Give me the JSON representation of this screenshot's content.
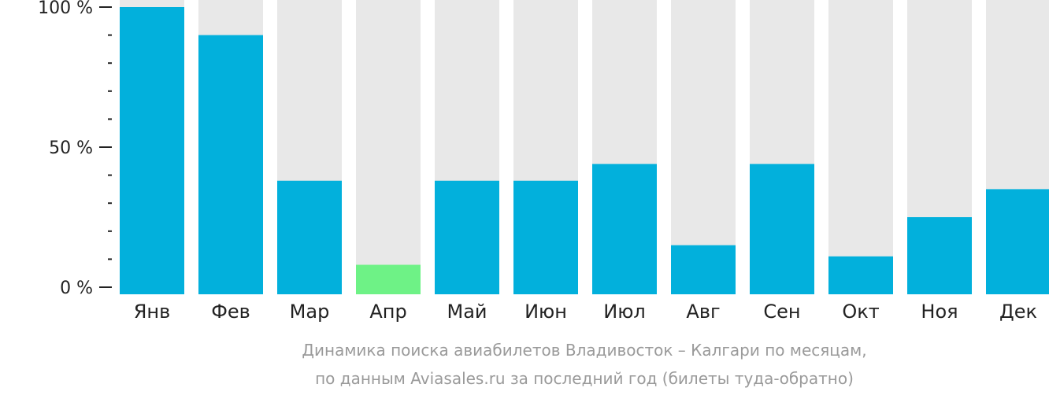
{
  "chart_data": {
    "type": "bar",
    "categories": [
      "Янв",
      "Фев",
      "Мар",
      "Апр",
      "Май",
      "Июн",
      "Июл",
      "Авг",
      "Сен",
      "Окт",
      "Ноя",
      "Дек"
    ],
    "values": [
      100,
      90,
      38,
      8,
      38,
      38,
      44,
      15,
      44,
      11,
      25,
      35
    ],
    "ylim": [
      0,
      100
    ],
    "y_ticks": [
      {
        "value": 100,
        "label": "100 %"
      },
      {
        "value": 50,
        "label": "50 %"
      },
      {
        "value": 0,
        "label": "0 %"
      }
    ],
    "y_minor_ticks": [
      10,
      20,
      30,
      40,
      60,
      70,
      80,
      90
    ],
    "highlight_index": 3,
    "colors": {
      "bar": "#02b0dc",
      "highlight": "#6ef286",
      "track": "#e8e8e8",
      "axis": "#222222",
      "caption": "#9a9a9a"
    },
    "caption_lines": [
      "Динамика поиска авиабилетов Владивосток – Калгари по месяцам,",
      "по данным Aviasales.ru за последний год (билеты туда-обратно)"
    ]
  }
}
